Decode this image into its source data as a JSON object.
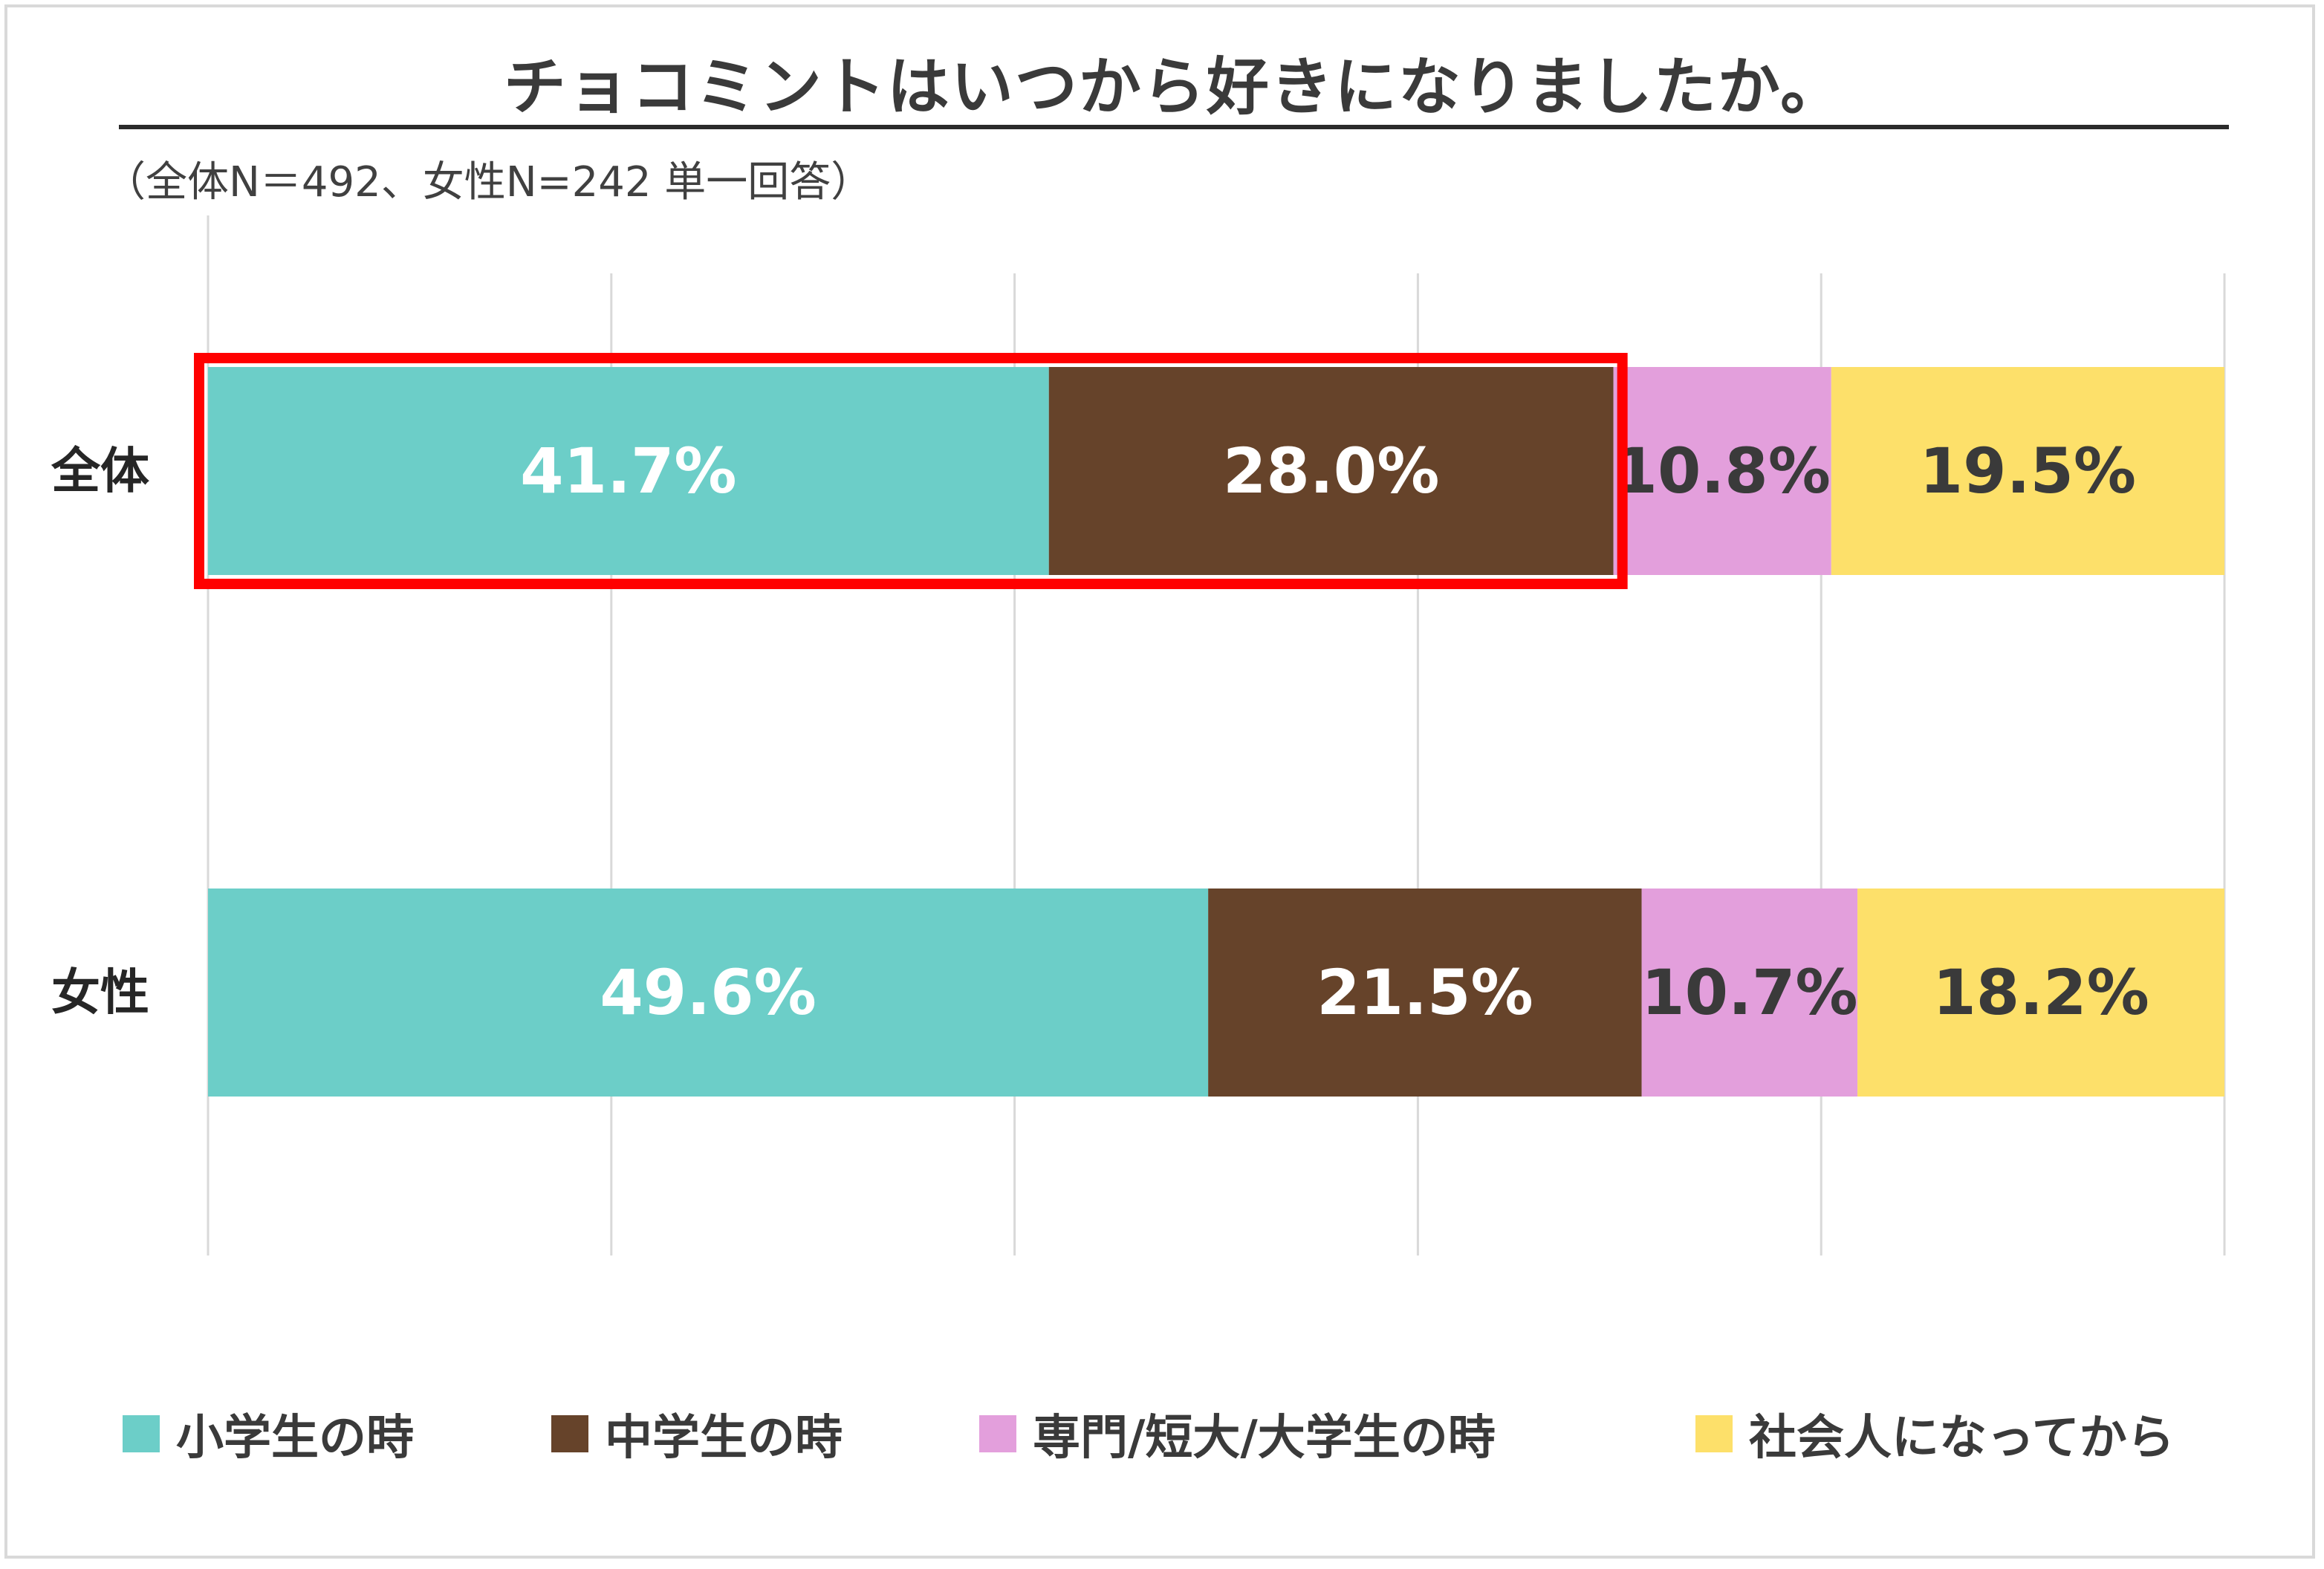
{
  "chart_data": {
    "type": "bar",
    "orientation": "horizontal",
    "stacked": true,
    "title": "チョコミントはいつから好きになりましたか。",
    "subtitle": "（全体N＝492、女性N=242 単一回答）",
    "categories": [
      "全体",
      "女性"
    ],
    "series": [
      {
        "name": "小学生の時",
        "color": "#6cceC8",
        "label_color": "#ffffff",
        "values": [
          41.7,
          49.6
        ],
        "labels": [
          "41.7%",
          "49.6%"
        ]
      },
      {
        "name": "中学生の時",
        "color": "#66432a",
        "label_color": "#ffffff",
        "values": [
          28.0,
          21.5
        ],
        "labels": [
          "28.0%",
          "21.5%"
        ]
      },
      {
        "name": "専門/短大/大学生の時",
        "color": "#e39fdc",
        "label_color": "#3a3a3a",
        "values": [
          10.8,
          10.7
        ],
        "labels": [
          "10.8%",
          "10.7%"
        ]
      },
      {
        "name": "社会人になってから",
        "color": "#fde06a",
        "label_color": "#3a3a3a",
        "values": [
          19.5,
          18.2
        ],
        "labels": [
          "19.5%",
          "18.2%"
        ]
      }
    ],
    "xlim": [
      0,
      100
    ],
    "x_gridlines": [
      0,
      20,
      40,
      60,
      80,
      100
    ],
    "grid": true,
    "legend_position": "bottom",
    "highlight": {
      "category": "全体",
      "series": [
        "小学生の時",
        "中学生の時"
      ],
      "color": "#ff0000"
    }
  }
}
